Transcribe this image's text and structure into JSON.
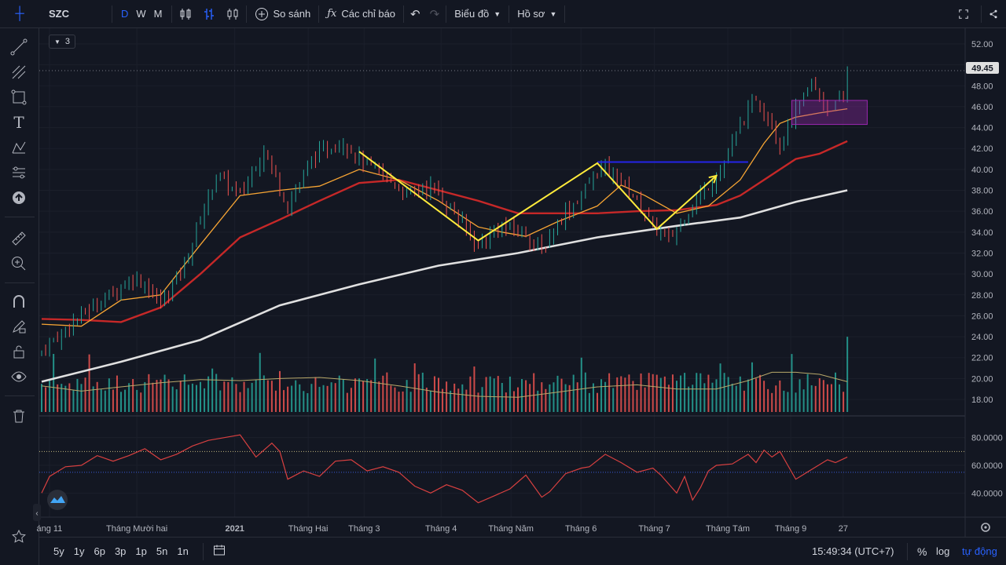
{
  "symbol": "SZC",
  "intervals": [
    "D",
    "W",
    "M"
  ],
  "active_interval": "D",
  "toolbar": {
    "compare": "So sánh",
    "indicators": "Các chỉ báo",
    "chart_type": "Biểu đồ",
    "profile": "Hồ sơ"
  },
  "legend_count": "3",
  "price_axis": [
    "52.00",
    "50.00",
    "48.00",
    "46.00",
    "44.00",
    "42.00",
    "40.00",
    "38.00",
    "36.00",
    "34.00",
    "32.00",
    "30.00",
    "28.00",
    "26.00",
    "24.00",
    "22.00",
    "20.00",
    "18.00"
  ],
  "last_price": "49.45",
  "rsi_axis": [
    "80.0000",
    "60.0000",
    "40.0000"
  ],
  "time_axis": [
    "áng 11",
    "Tháng Mười hai",
    "2021",
    "Tháng Hai",
    "Tháng 3",
    "Tháng 4",
    "Tháng Năm",
    "Tháng 6",
    "Tháng 7",
    "Tháng Tám",
    "Tháng 9",
    "27"
  ],
  "ranges": [
    "5y",
    "1y",
    "6p",
    "3p",
    "1p",
    "5n",
    "1n"
  ],
  "clock": "15:49:34 (UTC+7)",
  "scale": {
    "percent": "%",
    "log": "log",
    "auto": "tự động"
  },
  "colors": {
    "up": "#26a69a",
    "down": "#ef5350",
    "bg": "#131722",
    "accent": "#2962ff",
    "pattern": "#ffeb3b",
    "ma_fast": "#f7a534",
    "ma_mid": "#c62828",
    "ma_slow": "#e0e0e0"
  },
  "chart_data": {
    "type": "candlestick",
    "price_range": [
      16.8,
      53.2
    ],
    "last": 49.45,
    "close_path": [
      [
        0,
        22.6
      ],
      [
        8,
        25.5
      ],
      [
        16,
        27.8
      ],
      [
        24,
        29.8
      ],
      [
        30,
        27.2
      ],
      [
        36,
        31.0
      ],
      [
        44,
        39.5
      ],
      [
        50,
        37.5
      ],
      [
        56,
        42.0
      ],
      [
        62,
        36.5
      ],
      [
        68,
        41.0
      ],
      [
        76,
        42.8
      ],
      [
        80,
        41.0
      ],
      [
        86,
        39.5
      ],
      [
        92,
        37.6
      ],
      [
        98,
        38.5
      ],
      [
        104,
        35.8
      ],
      [
        110,
        32.8
      ],
      [
        116,
        34.5
      ],
      [
        122,
        34.0
      ],
      [
        126,
        32.0
      ],
      [
        130,
        35.0
      ],
      [
        136,
        37.5
      ],
      [
        140,
        40.0
      ],
      [
        144,
        39.8
      ],
      [
        150,
        37.0
      ],
      [
        154,
        34.6
      ],
      [
        158,
        33.2
      ],
      [
        162,
        35.6
      ],
      [
        168,
        38.5
      ],
      [
        172,
        40.5
      ],
      [
        176,
        44.2
      ],
      [
        180,
        47.0
      ],
      [
        184,
        44.5
      ],
      [
        186,
        42.2
      ],
      [
        190,
        45.5
      ],
      [
        194,
        48.2
      ],
      [
        198,
        45.8
      ],
      [
        202,
        46.5
      ],
      [
        203,
        49.45
      ]
    ],
    "ma_fast_path": [
      [
        0,
        25.2
      ],
      [
        10,
        25.0
      ],
      [
        20,
        27.5
      ],
      [
        30,
        28.0
      ],
      [
        40,
        32.8
      ],
      [
        50,
        37.5
      ],
      [
        60,
        38.0
      ],
      [
        70,
        38.4
      ],
      [
        80,
        40.0
      ],
      [
        90,
        39.0
      ],
      [
        100,
        37.0
      ],
      [
        110,
        34.5
      ],
      [
        116,
        34.0
      ],
      [
        122,
        33.6
      ],
      [
        130,
        35.0
      ],
      [
        140,
        36.5
      ],
      [
        146,
        38.5
      ],
      [
        152,
        37.5
      ],
      [
        160,
        35.8
      ],
      [
        168,
        36.5
      ],
      [
        176,
        39.0
      ],
      [
        182,
        42.5
      ],
      [
        186,
        44.4
      ],
      [
        190,
        45.0
      ],
      [
        196,
        45.4
      ],
      [
        203,
        45.8
      ]
    ],
    "ma_mid_path": [
      [
        0,
        25.7
      ],
      [
        10,
        25.6
      ],
      [
        20,
        25.4
      ],
      [
        30,
        26.8
      ],
      [
        40,
        30.0
      ],
      [
        50,
        33.5
      ],
      [
        60,
        35.2
      ],
      [
        70,
        37.0
      ],
      [
        80,
        38.7
      ],
      [
        90,
        39.0
      ],
      [
        100,
        38.0
      ],
      [
        110,
        37.0
      ],
      [
        120,
        35.8
      ],
      [
        130,
        35.8
      ],
      [
        140,
        35.8
      ],
      [
        150,
        36.0
      ],
      [
        160,
        36.1
      ],
      [
        170,
        36.6
      ],
      [
        176,
        37.5
      ],
      [
        182,
        39.0
      ],
      [
        190,
        41.0
      ],
      [
        196,
        41.5
      ],
      [
        203,
        42.7
      ]
    ],
    "ma_slow_path": [
      [
        0,
        19.7
      ],
      [
        20,
        21.6
      ],
      [
        40,
        23.7
      ],
      [
        60,
        27.0
      ],
      [
        80,
        29.0
      ],
      [
        100,
        30.8
      ],
      [
        120,
        32.0
      ],
      [
        140,
        33.5
      ],
      [
        160,
        34.6
      ],
      [
        176,
        35.4
      ],
      [
        190,
        36.9
      ],
      [
        203,
        38.0
      ]
    ],
    "pattern_lines": [
      [
        [
          80,
          41.7
        ],
        [
          110,
          33.2
        ],
        [
          140,
          40.6
        ],
        [
          155,
          34.3
        ],
        [
          170,
          39.4
        ]
      ]
    ],
    "resistance": {
      "from": 140,
      "to": 178,
      "price": 40.7
    },
    "highlight_box": {
      "from": 189,
      "to": 208,
      "price_high": 46.6,
      "price_low": 44.3
    },
    "volume_ma_path": [
      [
        0,
        19.3
      ],
      [
        10,
        18.8
      ],
      [
        20,
        19.2
      ],
      [
        30,
        19.6
      ],
      [
        40,
        19.9
      ],
      [
        50,
        19.8
      ],
      [
        60,
        20.0
      ],
      [
        70,
        20.1
      ],
      [
        80,
        19.8
      ],
      [
        90,
        19.3
      ],
      [
        100,
        18.7
      ],
      [
        110,
        18.3
      ],
      [
        120,
        18.2
      ],
      [
        130,
        18.7
      ],
      [
        140,
        19.2
      ],
      [
        150,
        19.4
      ],
      [
        160,
        19.0
      ],
      [
        170,
        19.0
      ],
      [
        178,
        19.8
      ],
      [
        184,
        20.6
      ],
      [
        190,
        20.6
      ],
      [
        196,
        20.4
      ],
      [
        203,
        19.7
      ]
    ],
    "rsi_path": [
      [
        0,
        40
      ],
      [
        2,
        52
      ],
      [
        6,
        59
      ],
      [
        10,
        60
      ],
      [
        14,
        67
      ],
      [
        18,
        63
      ],
      [
        22,
        67
      ],
      [
        26,
        72
      ],
      [
        30,
        64
      ],
      [
        34,
        68
      ],
      [
        38,
        74
      ],
      [
        42,
        78
      ],
      [
        46,
        80
      ],
      [
        50,
        82
      ],
      [
        54,
        66
      ],
      [
        58,
        76
      ],
      [
        60,
        70
      ],
      [
        62,
        50
      ],
      [
        66,
        56
      ],
      [
        70,
        52
      ],
      [
        74,
        63
      ],
      [
        78,
        64
      ],
      [
        82,
        56
      ],
      [
        86,
        59
      ],
      [
        90,
        55
      ],
      [
        94,
        45
      ],
      [
        98,
        40
      ],
      [
        102,
        46
      ],
      [
        106,
        42
      ],
      [
        110,
        33
      ],
      [
        114,
        38
      ],
      [
        118,
        43
      ],
      [
        122,
        53
      ],
      [
        126,
        37
      ],
      [
        128,
        41
      ],
      [
        132,
        54
      ],
      [
        136,
        58
      ],
      [
        138,
        59
      ],
      [
        142,
        68
      ],
      [
        146,
        62
      ],
      [
        150,
        55
      ],
      [
        154,
        58
      ],
      [
        156,
        53
      ],
      [
        160,
        40
      ],
      [
        162,
        52
      ],
      [
        164,
        35
      ],
      [
        166,
        44
      ],
      [
        168,
        56
      ],
      [
        170,
        60
      ],
      [
        174,
        61
      ],
      [
        178,
        68
      ],
      [
        180,
        62
      ],
      [
        182,
        71
      ],
      [
        184,
        66
      ],
      [
        186,
        70
      ],
      [
        188,
        60
      ],
      [
        190,
        50
      ],
      [
        194,
        57
      ],
      [
        198,
        64
      ],
      [
        200,
        62
      ],
      [
        203,
        66
      ]
    ]
  }
}
